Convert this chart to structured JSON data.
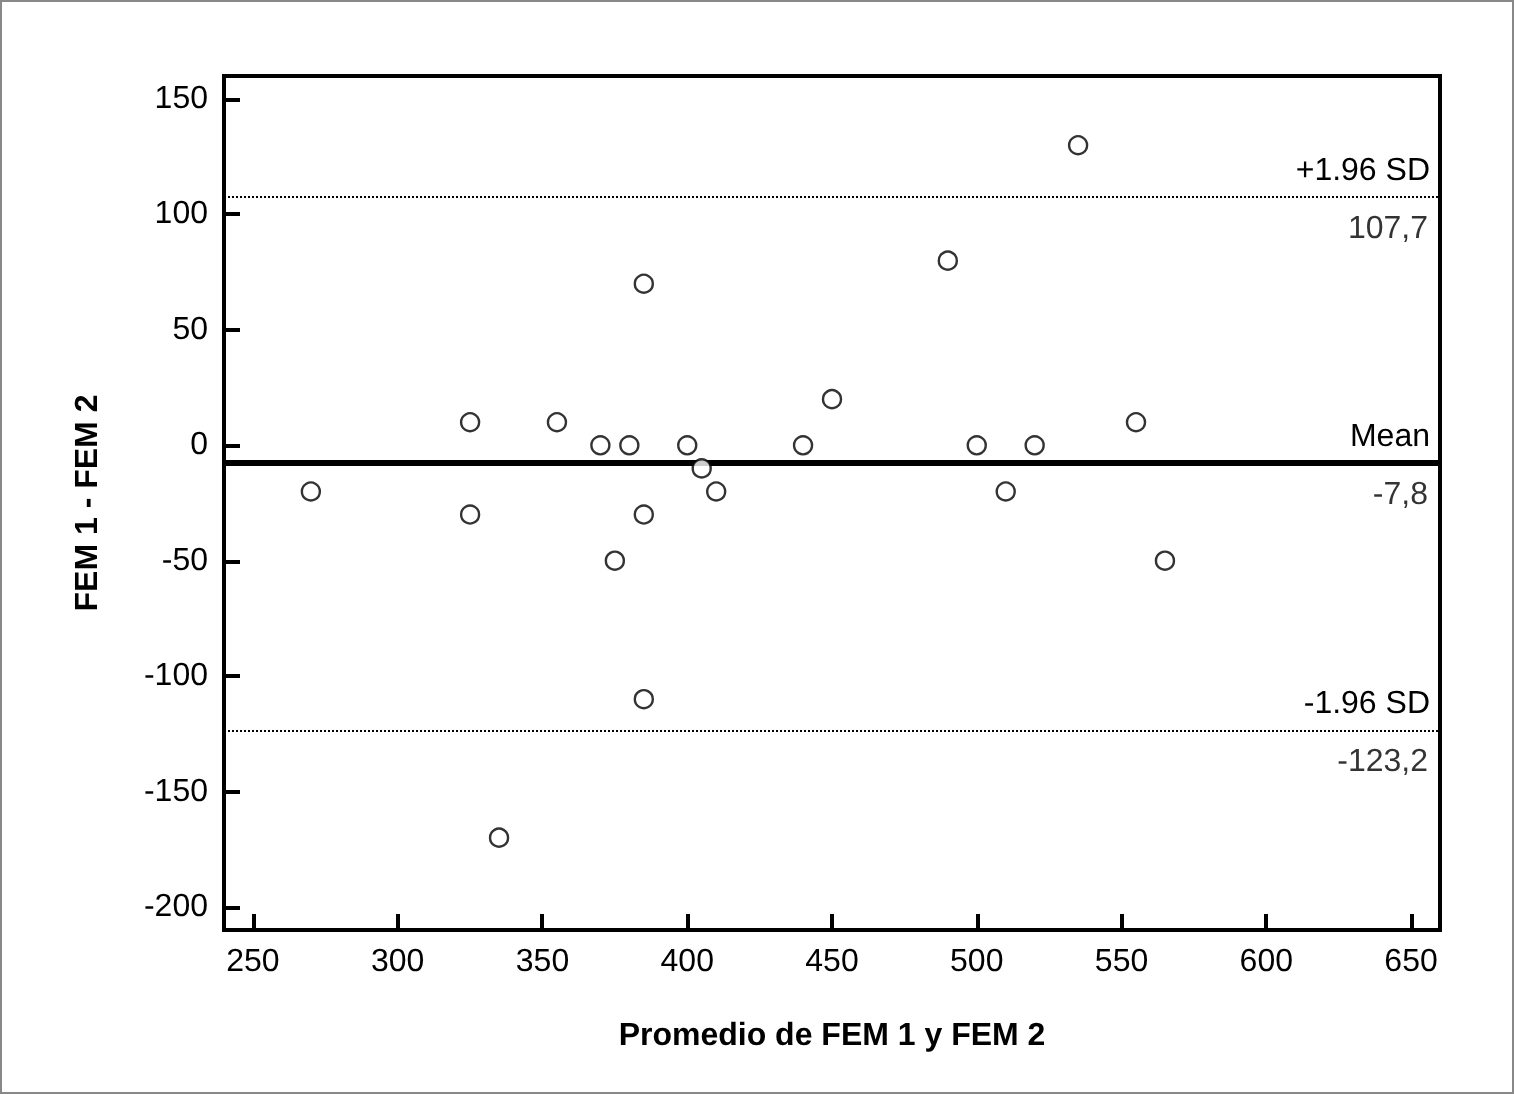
{
  "chart_data": {
    "type": "scatter",
    "xlabel": "Promedio de FEM 1 y FEM 2",
    "ylabel": "FEM 1 - FEM 2",
    "x": [
      270,
      325,
      325,
      335,
      355,
      370,
      375,
      380,
      385,
      385,
      385,
      400,
      405,
      410,
      440,
      450,
      490,
      500,
      510,
      520,
      535,
      555,
      565
    ],
    "values": [
      -20,
      10,
      -30,
      -170,
      10,
      0,
      -50,
      0,
      70,
      -30,
      -110,
      0,
      -10,
      -20,
      0,
      20,
      80,
      0,
      -20,
      0,
      130,
      10,
      -50
    ],
    "color": "#000000",
    "marker": "circle",
    "xlim": [
      240,
      660
    ],
    "xticks": [
      250,
      300,
      350,
      400,
      450,
      500,
      550,
      600,
      650
    ],
    "ylim": [
      -210,
      160
    ],
    "yticks": [
      -200,
      -150,
      -100,
      -50,
      0,
      50,
      100,
      150
    ],
    "grid": false,
    "ref_lines": [
      {
        "axis": "y",
        "value": 107.7,
        "label": "+1.96 SD",
        "line_style": "dotted"
      },
      {
        "axis": "y",
        "value": -7.8,
        "label": "Mean",
        "line_style": "solid"
      },
      {
        "axis": "y",
        "value": -123.2,
        "label": "-1.96 SD",
        "line_style": "dotted"
      }
    ],
    "annotations": [
      {
        "text": "107,7",
        "y": 107.7
      },
      {
        "text": "-7,8",
        "y": -7.8
      },
      {
        "text": "-123,2",
        "y": -123.2
      }
    ]
  }
}
